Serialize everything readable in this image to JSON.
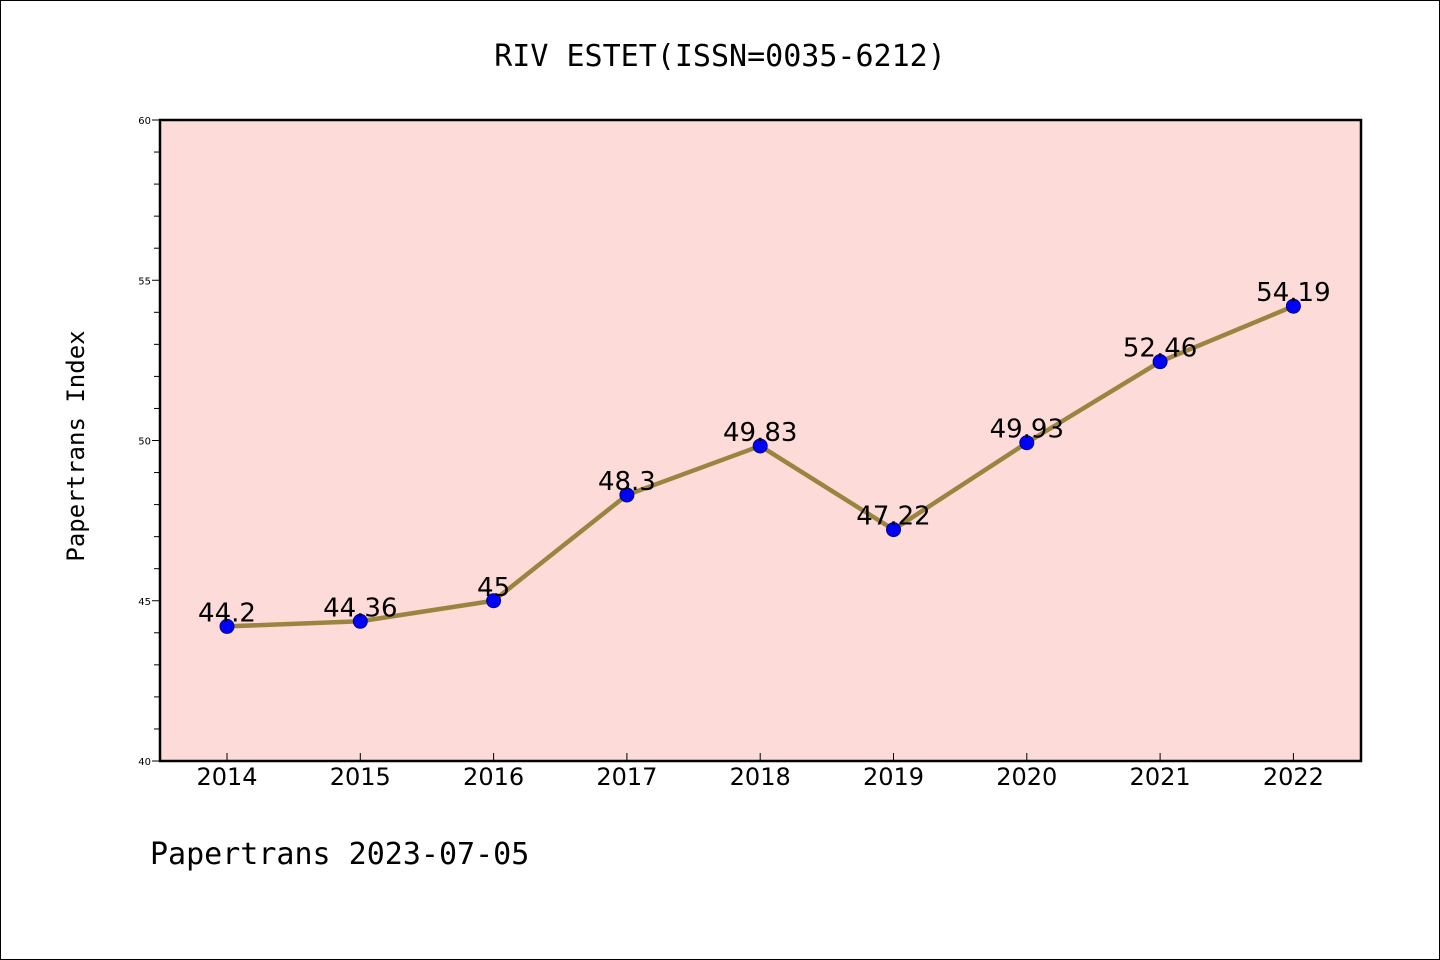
{
  "chart_data": {
    "type": "line",
    "title": "RIV ESTET(ISSN=0035-6212)",
    "xlabel": "",
    "ylabel": "Papertrans Index",
    "categories": [
      "2014",
      "2015",
      "2016",
      "2017",
      "2018",
      "2019",
      "2020",
      "2021",
      "2022"
    ],
    "values": [
      44.2,
      44.36,
      45,
      48.3,
      49.83,
      47.22,
      49.93,
      52.46,
      54.19
    ],
    "data_labels": [
      "44.2",
      "44.36",
      "45",
      "48.3",
      "49.83",
      "47.22",
      "49.93",
      "52.46",
      "54.19"
    ],
    "ylim": [
      40,
      60
    ],
    "yticks": [
      40,
      45,
      50,
      55,
      60
    ],
    "grid": false,
    "legend": "none"
  },
  "footer": "Papertrans 2023-07-05",
  "colors": {
    "plot_background": "#fddbd8",
    "line": "#9a8540",
    "marker": "#0000ff",
    "marker_edge": "#000080",
    "axes": "#000000"
  }
}
